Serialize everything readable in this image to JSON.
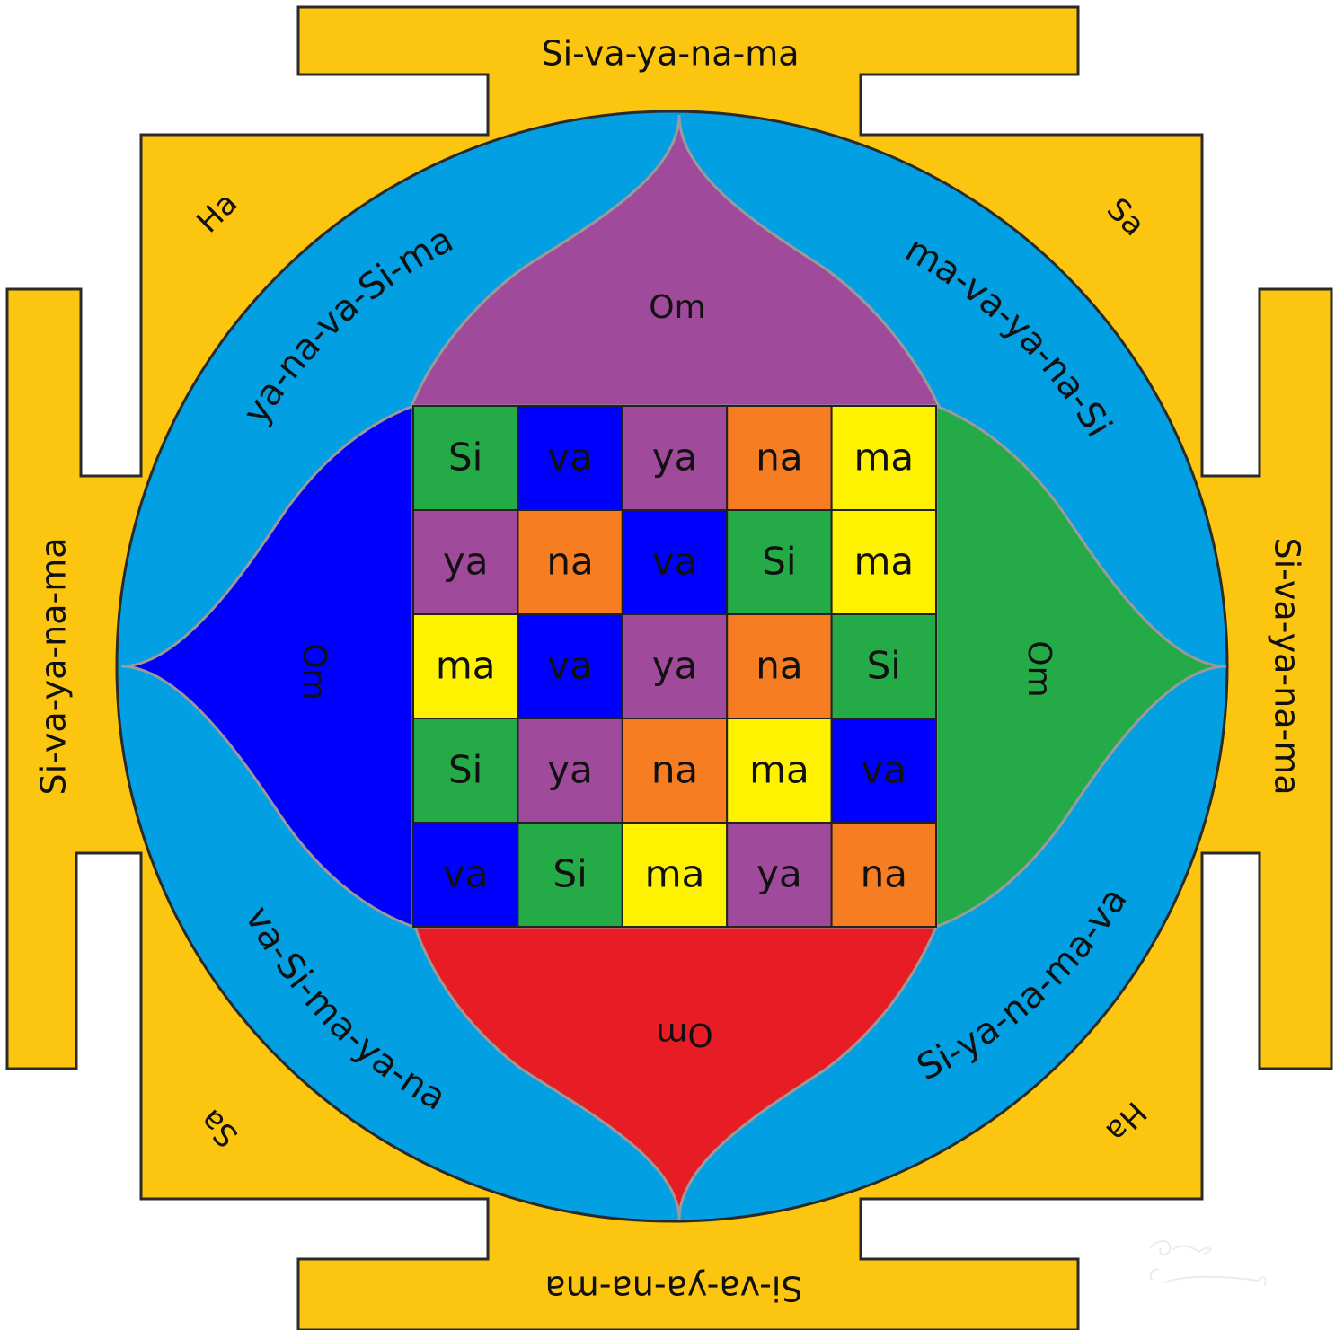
{
  "colors": {
    "background": "#ffffff",
    "gate_gold": "#fcc50f",
    "outline": "#2a2a2a",
    "ring_blue": "#02a0e3",
    "petal_top_purple": "#a04a9c",
    "petal_left_blue": "#0000ff",
    "petal_right_green": "#24ab48",
    "petal_bottom_red": "#e81c24",
    "syllable_colors": {
      "Si": "#24ab48",
      "va": "#0000ff",
      "ya": "#a04a9c",
      "na": "#f67d22",
      "ma": "#fff200"
    }
  },
  "gates": {
    "top": "Si-va-ya-na-ma",
    "bottom": "Si-va-ya-na-ma",
    "left": "Si-va-ya-na-ma",
    "right": "Si-va-ya-na-ma"
  },
  "corners": {
    "top_left": "Ha",
    "top_right": "Sa",
    "bottom_left": "Sa",
    "bottom_right": "Ha"
  },
  "ring_labels": {
    "top_left": "ya-na-va-Si-ma",
    "top_right": "ma-va-ya-na-Si",
    "bottom_left": "va-Si-ma-ya-na",
    "bottom_right": "Si-ya-na-ma-va"
  },
  "petals": {
    "top": "Om",
    "left": "Om",
    "right": "Om",
    "bottom": "Om"
  },
  "grid": [
    [
      "Si",
      "va",
      "ya",
      "na",
      "ma"
    ],
    [
      "ya",
      "na",
      "va",
      "Si",
      "ma"
    ],
    [
      "ma",
      "va",
      "ya",
      "na",
      "Si"
    ],
    [
      "Si",
      "ya",
      "na",
      "ma",
      "va"
    ],
    [
      "va",
      "Si",
      "ma",
      "ya",
      "na"
    ]
  ]
}
